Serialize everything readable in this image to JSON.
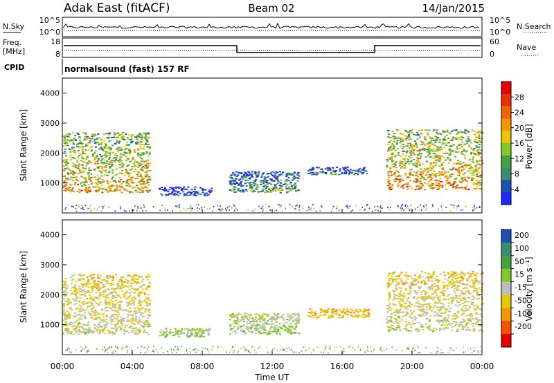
{
  "header": {
    "station": "Adak East (fitACF)",
    "beam": "Beam 02",
    "date": "14/Jan/2015"
  },
  "top_panel": {
    "left_label": "N.Sky",
    "right_label": "N.Search",
    "left_ticks": [
      "10^5",
      "10^0"
    ],
    "right_ticks": [
      "10^5",
      "10^0"
    ]
  },
  "freq_panel": {
    "left_label_1": "Freq.",
    "left_label_2": "[MHz]",
    "right_label": "Nave",
    "left_ticks": [
      "18",
      "8"
    ],
    "right_ticks": [
      "60",
      "0"
    ]
  },
  "cpid_panel": {
    "label": "CPID",
    "text": "normalsound (fast) 157 RF"
  },
  "colors": {
    "power_scale": [
      "#1e28ff",
      "#1f4fb3",
      "#3c8c6e",
      "#46a046",
      "#82c828",
      "#e6c800",
      "#f59600",
      "#f06400",
      "#e63200",
      "#e60000"
    ],
    "velocity_scale": [
      "#e60000",
      "#f55000",
      "#f59600",
      "#e6c800",
      "#bebebe",
      "#82c828",
      "#46a046",
      "#3c8c6e",
      "#1f4fb3"
    ]
  },
  "chart_data": [
    {
      "type": "heatmap",
      "quantity": "Power",
      "ylabel": "Slant Range [km]",
      "xlim": [
        "00:00",
        "24:00"
      ],
      "ylim": [
        0,
        4500
      ],
      "yticks": [
        "1000",
        "2000",
        "3000",
        "4000"
      ],
      "colorbar": {
        "label": "Power [dB]",
        "ticks": [
          "4",
          "8",
          "12",
          "16",
          "20",
          "24",
          "28"
        ],
        "range": [
          0,
          32
        ]
      },
      "regions": [
        {
          "t_start": 0.0,
          "t_end": 5.0,
          "r_min": 700,
          "r_max": 2700,
          "value": 20
        },
        {
          "t_start": 5.5,
          "t_end": 8.5,
          "r_min": 600,
          "r_max": 900,
          "value": 6
        },
        {
          "t_start": 9.5,
          "t_end": 13.5,
          "r_min": 700,
          "r_max": 1400,
          "value": 12
        },
        {
          "t_start": 14.0,
          "t_end": 17.5,
          "r_min": 1300,
          "r_max": 1550,
          "value": 8
        },
        {
          "t_start": 18.5,
          "t_end": 24.0,
          "r_min": 800,
          "r_max": 2800,
          "value": 22
        }
      ]
    },
    {
      "type": "heatmap",
      "quantity": "Velocity",
      "xlabel": "Time UT",
      "ylabel": "Slant Range [km]",
      "xlim": [
        "00:00",
        "24:00"
      ],
      "xticks": [
        "00:00",
        "04:00",
        "08:00",
        "12:00",
        "16:00",
        "20:00",
        "00:00"
      ],
      "ylim": [
        0,
        4500
      ],
      "yticks": [
        "1000",
        "2000",
        "3000",
        "4000"
      ],
      "colorbar": {
        "label": "Velocity [m s⁻¹]",
        "ticks": [
          "200",
          "100",
          "50",
          "15",
          "-15",
          "-50",
          "-100",
          "-200"
        ],
        "range": [
          -250,
          250
        ]
      },
      "regions": [
        {
          "t_start": 0.0,
          "t_end": 5.0,
          "r_min": 700,
          "r_max": 2700,
          "value": 0
        },
        {
          "t_start": 5.5,
          "t_end": 8.5,
          "r_min": 600,
          "r_max": 900,
          "value": 40
        },
        {
          "t_start": 9.5,
          "t_end": 13.5,
          "r_min": 700,
          "r_max": 1400,
          "value": 30
        },
        {
          "t_start": 14.0,
          "t_end": 17.5,
          "r_min": 1250,
          "r_max": 1550,
          "value": -30
        },
        {
          "t_start": 18.5,
          "t_end": 24.0,
          "r_min": 800,
          "r_max": 2800,
          "value": 0
        }
      ]
    }
  ]
}
